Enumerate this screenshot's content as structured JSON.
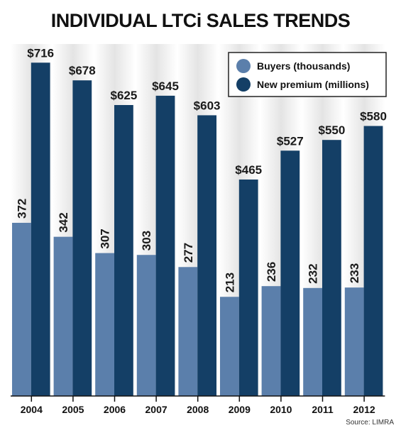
{
  "chart_data": {
    "type": "bar",
    "title": "INDIVIDUAL LTCi SALES TRENDS",
    "categories": [
      "2004",
      "2005",
      "2006",
      "2007",
      "2008",
      "2009",
      "2010",
      "2011",
      "2012"
    ],
    "series": [
      {
        "name": "Buyers (thousands)",
        "color": "#5b7fab",
        "values": [
          372,
          342,
          307,
          303,
          277,
          213,
          236,
          232,
          233
        ],
        "labels": [
          "372",
          "342",
          "307",
          "303",
          "277",
          "213",
          "236",
          "232",
          "233"
        ]
      },
      {
        "name": "New premium (millions)",
        "color": "#143f66",
        "values": [
          716,
          678,
          625,
          645,
          603,
          465,
          527,
          550,
          580
        ],
        "labels": [
          "$716",
          "$678",
          "$625",
          "$645",
          "$603",
          "$465",
          "$527",
          "$550",
          "$580"
        ]
      }
    ],
    "ylim": [
      0,
      800
    ],
    "grid": false,
    "legend_position": "top-right",
    "source": "Source: LIMRA"
  }
}
